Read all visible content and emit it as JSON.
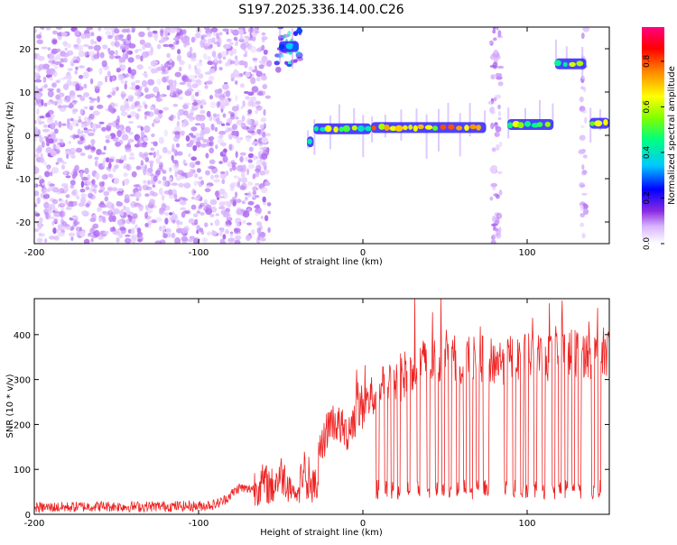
{
  "title": "S197.2025.336.14.00.C26",
  "chart_data": [
    {
      "type": "heatmap",
      "name": "spectrogram",
      "xlabel": "Height of straight line (km)",
      "ylabel": "Frequency (Hz)",
      "xlim": [
        -200,
        150
      ],
      "ylim": [
        -25,
        25
      ],
      "xticks": [
        -200,
        -100,
        0,
        100
      ],
      "xtick_labels": [
        "-200",
        "-100",
        "0",
        "100"
      ],
      "yticks": [
        -20,
        -10,
        0,
        10,
        20
      ],
      "ytick_labels": [
        "-20",
        "-10",
        "0",
        "10",
        "20"
      ],
      "colorbar": {
        "label": "Normalized spectral amplitude",
        "range": [
          0,
          0.95
        ],
        "ticks": [
          0,
          0.2,
          0.4,
          0.6,
          0.8
        ],
        "tick_labels": [
          "0.0",
          "0.2",
          "0.4",
          "0.6",
          "0.8"
        ],
        "colors": [
          "#ffffff",
          "#d8b4ff",
          "#8a2be2",
          "#0000ff",
          "#00c8ff",
          "#00ff80",
          "#80ff00",
          "#ffff00",
          "#ff8000",
          "#ff0000",
          "#ff0080"
        ]
      },
      "regions": [
        {
          "kind": "noise",
          "x": [
            -200,
            -57
          ],
          "freq": [
            -25,
            25
          ],
          "level": 0.12
        },
        {
          "kind": "noise",
          "x": [
            -53,
            -37
          ],
          "freq": [
            15,
            25
          ],
          "level": 0.35
        },
        {
          "kind": "noise",
          "x": [
            78,
            84
          ],
          "freq": [
            -25,
            25
          ],
          "level": 0.12
        },
        {
          "kind": "noise",
          "x": [
            133,
            136
          ],
          "freq": [
            -25,
            25
          ],
          "level": 0.12
        }
      ],
      "tone_tracks": [
        {
          "x": [
            -51,
            -39
          ],
          "freq": 20.5,
          "level": 0.35
        },
        {
          "x": [
            -34,
            -30
          ],
          "freq": -1.5,
          "level": 0.5
        },
        {
          "x": [
            -30,
            5
          ],
          "freq": 1.5,
          "level": 0.55
        },
        {
          "x": [
            5,
            75
          ],
          "freq": 1.8,
          "level": 0.7
        },
        {
          "x": [
            88,
            116
          ],
          "freq": 2.5,
          "level": 0.55
        },
        {
          "x": [
            117,
            136
          ],
          "freq": 16.5,
          "level": 0.6
        },
        {
          "x": [
            138,
            150
          ],
          "freq": 2.8,
          "level": 0.6
        }
      ]
    },
    {
      "type": "line",
      "name": "snr",
      "xlabel": "Height of straight line (km)",
      "ylabel": "SNR (10 * v/v)",
      "xlim": [
        -200,
        150
      ],
      "ylim": [
        0,
        480
      ],
      "xticks": [
        -200,
        -100,
        0,
        100
      ],
      "xtick_labels": [
        "-200",
        "-100",
        "0",
        "100"
      ],
      "yticks": [
        0,
        100,
        200,
        300,
        400
      ],
      "ytick_labels": [
        "0",
        "100",
        "200",
        "300",
        "400"
      ],
      "color": "#ee2222",
      "x": [
        -200,
        -180,
        -160,
        -140,
        -120,
        -100,
        -90,
        -85,
        -80,
        -75,
        -70,
        -60,
        -55,
        -50,
        -45,
        -40,
        -35,
        -30,
        -25,
        -20,
        -15,
        -10,
        -5,
        0,
        5,
        10,
        15,
        20,
        25,
        30,
        40,
        50,
        60,
        70,
        80,
        90,
        100,
        110,
        120,
        130,
        140,
        150
      ],
      "values": [
        15,
        16,
        18,
        17,
        18,
        18,
        22,
        30,
        45,
        60,
        55,
        70,
        60,
        90,
        70,
        40,
        120,
        60,
        150,
        210,
        200,
        180,
        220,
        240,
        260,
        270,
        300,
        300,
        310,
        330,
        340,
        345,
        345,
        350,
        340,
        345,
        350,
        345,
        360,
        360,
        355,
        365
      ],
      "dropouts_x": [
        -34,
        -28,
        9,
        14,
        18,
        22,
        28,
        34,
        40,
        45,
        49,
        53,
        58,
        62,
        66,
        70,
        74,
        76,
        87,
        92,
        97,
        100,
        105,
        110,
        116,
        120,
        124,
        128,
        132,
        140,
        144
      ],
      "dropout_level": 55,
      "spike_peak": 480
    }
  ]
}
